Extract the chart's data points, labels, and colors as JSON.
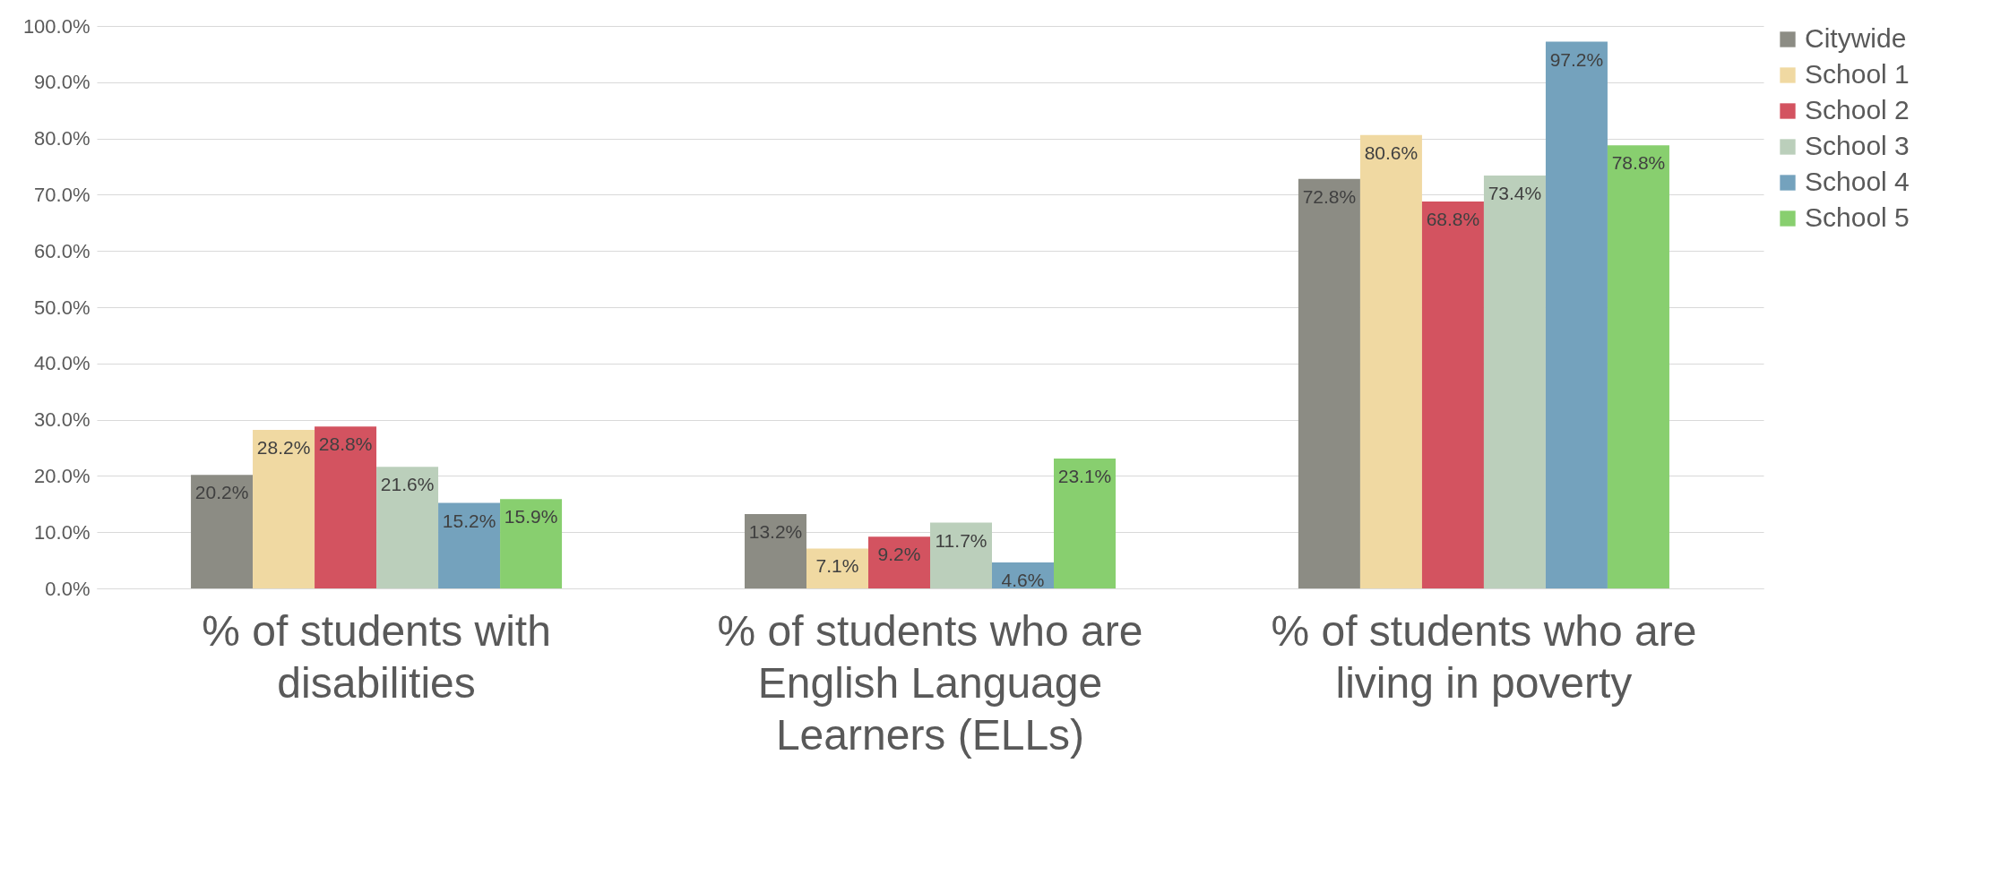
{
  "chart_data": {
    "type": "bar",
    "categories": [
      "% of students with disabilities",
      "% of students who are English Language Learners (ELLs)",
      "% of students who are living in poverty"
    ],
    "series": [
      {
        "name": "Citywide",
        "color": "#8c8c84",
        "values": [
          20.2,
          13.2,
          72.8
        ],
        "value_labels": [
          "20.2%",
          "13.2%",
          "72.8%"
        ]
      },
      {
        "name": "School 1",
        "color": "#f0d9a2",
        "values": [
          28.2,
          7.1,
          80.6
        ],
        "value_labels": [
          "28.2%",
          "7.1%",
          "80.6%"
        ]
      },
      {
        "name": "School 2",
        "color": "#d35360",
        "values": [
          28.8,
          9.2,
          68.8
        ],
        "value_labels": [
          "28.8%",
          "9.2%",
          "68.8%"
        ]
      },
      {
        "name": "School 3",
        "color": "#bbcfbb",
        "values": [
          21.6,
          11.7,
          73.4
        ],
        "value_labels": [
          "21.6%",
          "11.7%",
          "73.4%"
        ]
      },
      {
        "name": "School 4",
        "color": "#74a2bd",
        "values": [
          15.2,
          4.6,
          97.2
        ],
        "value_labels": [
          "15.2%",
          "4.6%",
          "97.2%"
        ]
      },
      {
        "name": "School 5",
        "color": "#88cf6f",
        "values": [
          15.9,
          23.1,
          78.8
        ],
        "value_labels": [
          "15.9%",
          "23.1%",
          "78.8%"
        ]
      }
    ],
    "ylim": [
      0,
      100
    ],
    "yticks": [
      {
        "value": 0,
        "label": "0.0%"
      },
      {
        "value": 10,
        "label": "10.0%"
      },
      {
        "value": 20,
        "label": "20.0%"
      },
      {
        "value": 30,
        "label": "30.0%"
      },
      {
        "value": 40,
        "label": "40.0%"
      },
      {
        "value": 50,
        "label": "50.0%"
      },
      {
        "value": 60,
        "label": "60.0%"
      },
      {
        "value": 70,
        "label": "70.0%"
      },
      {
        "value": 80,
        "label": "80.0%"
      },
      {
        "value": 90,
        "label": "90.0%"
      },
      {
        "value": 100,
        "label": "100.0%"
      }
    ],
    "grid": "y",
    "legend": "right"
  }
}
